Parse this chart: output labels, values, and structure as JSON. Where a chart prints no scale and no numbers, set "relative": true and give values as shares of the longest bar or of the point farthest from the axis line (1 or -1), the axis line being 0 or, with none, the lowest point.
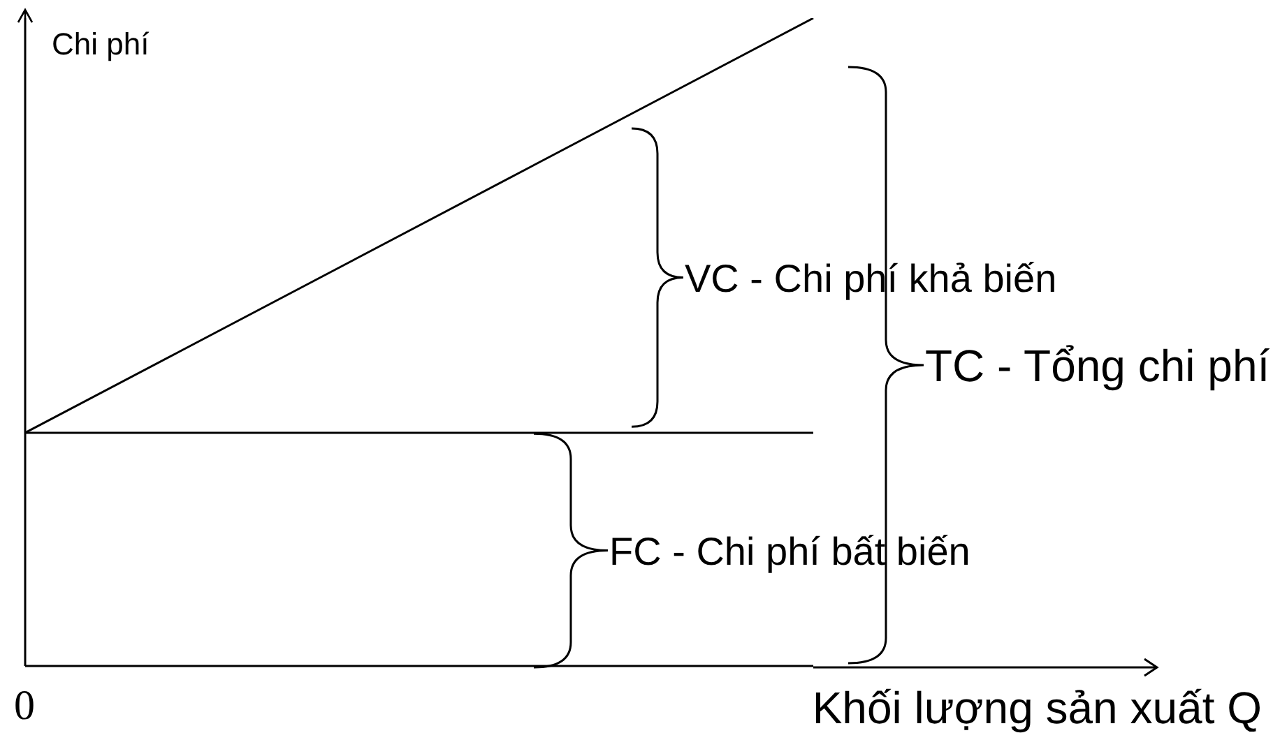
{
  "chart_data": {
    "type": "line",
    "relative": true,
    "ylabel": "Chi phí",
    "xlabel": "Khối lượng sản xuất Q",
    "categories": [
      null,
      null
    ],
    "series": [
      {
        "color": "#000000",
        "values": [
          0.36,
          1
        ]
      },
      {
        "color": "#000000",
        "values": [
          0.36,
          0.36
        ]
      }
    ],
    "annotations": [
      "VC - Chi phí khả biến",
      "TC - Tổng chi phí",
      "FC - Chi phí bất biến",
      "0"
    ],
    "grid": false,
    "legend": false,
    "marker": "none",
    "line_style": "solid"
  }
}
